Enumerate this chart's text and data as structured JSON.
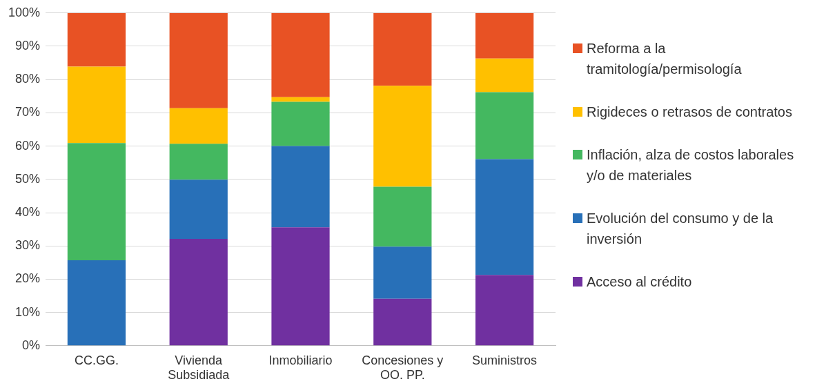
{
  "chart_data": {
    "type": "bar",
    "stacked": true,
    "categories": [
      "CC.GG.",
      "Vivienda Subsidiada",
      "Inmobiliario",
      "Concesiones y OO. PP.",
      "Suministros"
    ],
    "series": [
      {
        "name": "Acceso al crédito",
        "color": "#7030a0",
        "values": [
          0,
          32.1,
          35.6,
          14.1,
          21.3
        ]
      },
      {
        "name": "Evolución del consumo y de la inversión",
        "color": "#2870b8",
        "values": [
          25.7,
          17.8,
          24.4,
          15.7,
          34.8
        ]
      },
      {
        "name": "Inflación, alza de costos laborales y/o de materiales",
        "color": "#44b860",
        "values": [
          35.2,
          10.8,
          13.3,
          18.0,
          20.1
        ]
      },
      {
        "name": "Rigideces o retrasos de contratos",
        "color": "#ffc000",
        "values": [
          23.0,
          10.7,
          1.4,
          30.3,
          10.1
        ]
      },
      {
        "name": "Reforma a la tramitología/permisología",
        "color": "#e85224",
        "values": [
          16.1,
          28.6,
          25.3,
          21.9,
          13.7
        ]
      }
    ],
    "ylim": [
      0,
      100
    ],
    "yticks": [
      {
        "value": 0,
        "label": "0%"
      },
      {
        "value": 10,
        "label": "10%"
      },
      {
        "value": 20,
        "label": "20%"
      },
      {
        "value": 30,
        "label": "30%"
      },
      {
        "value": 40,
        "label": "40%"
      },
      {
        "value": 50,
        "label": "50%"
      },
      {
        "value": 60,
        "label": "60%"
      },
      {
        "value": 70,
        "label": "70%"
      },
      {
        "value": 80,
        "label": "80%"
      },
      {
        "value": 90,
        "label": "90%"
      },
      {
        "value": 100,
        "label": "100%"
      }
    ],
    "grid": "y",
    "legend": "right"
  }
}
